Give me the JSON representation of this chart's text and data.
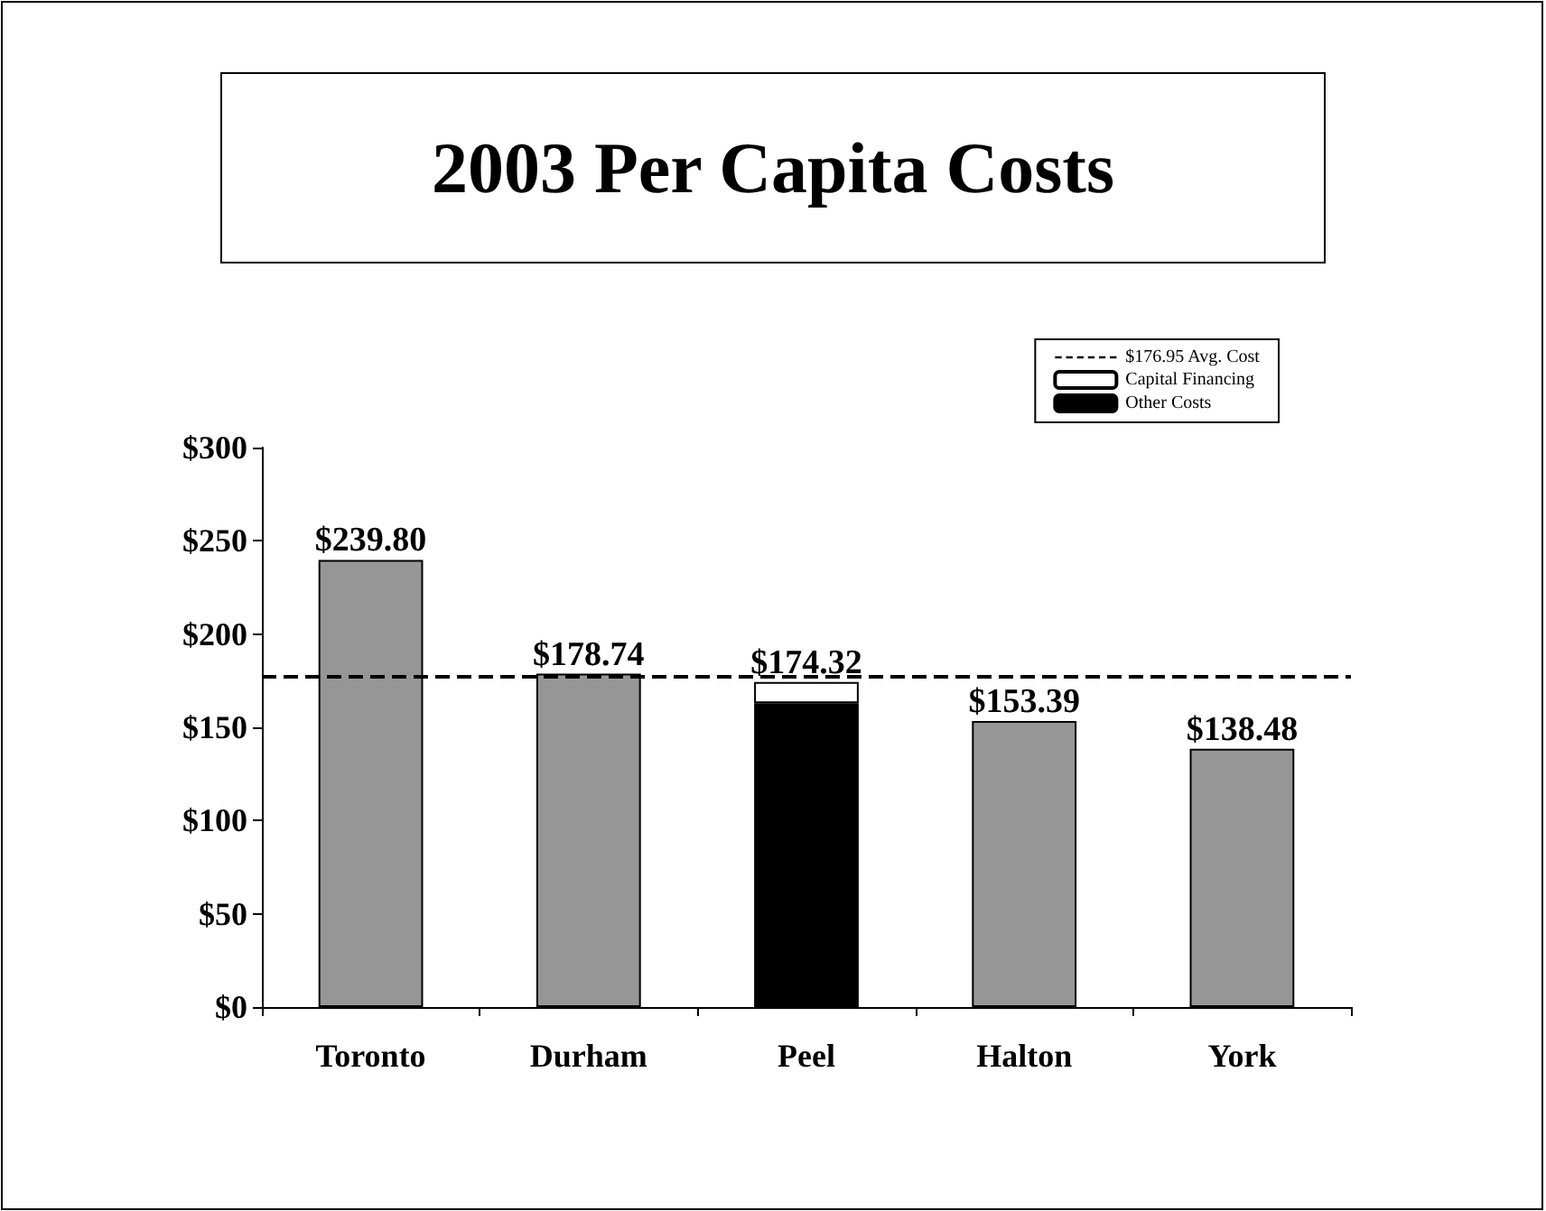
{
  "chart_data": {
    "type": "bar",
    "title": "2003 Per Capita Costs",
    "categories": [
      "Toronto",
      "Durham",
      "Peel",
      "Halton",
      "York"
    ],
    "stacked": true,
    "series": [
      {
        "color": "#969696",
        "values": [
          239.8,
          178.74,
          null,
          153.39,
          138.48
        ]
      },
      {
        "name": "Other Costs",
        "color": "#000000",
        "values": [
          null,
          null,
          163.0,
          null,
          null
        ]
      },
      {
        "name": "Capital Financing",
        "color": "#ffffff",
        "values": [
          null,
          null,
          11.32,
          null,
          null
        ]
      }
    ],
    "totals": [
      "$239.80",
      "$178.74",
      "$174.32",
      "$153.39",
      "$138.48"
    ],
    "ylim": [
      0,
      300
    ],
    "yticks": [
      {
        "value": 0,
        "label": "$0"
      },
      {
        "value": 50,
        "label": "$50"
      },
      {
        "value": 100,
        "label": "$100"
      },
      {
        "value": 150,
        "label": "$150"
      },
      {
        "value": 200,
        "label": "$200"
      },
      {
        "value": 250,
        "label": "$250"
      },
      {
        "value": 300,
        "label": "$300"
      }
    ],
    "ref_lines": [
      {
        "axis": "y",
        "value": 176.95,
        "label": "$176.95 Avg. Cost",
        "color": "#000000",
        "line_style": "dashed"
      }
    ],
    "grid": false,
    "legend": "top right"
  }
}
